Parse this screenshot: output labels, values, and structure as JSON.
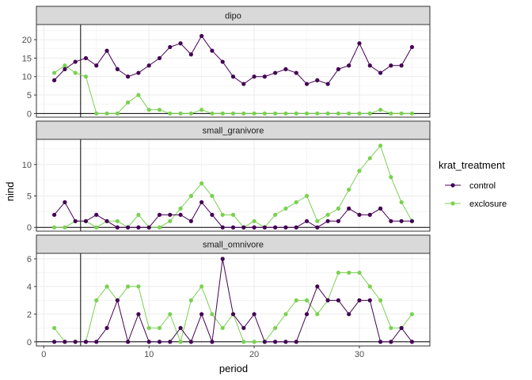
{
  "chart_data": {
    "type": "line",
    "xlabel": "period",
    "ylabel": "nind",
    "xlim": [
      -0.7,
      36.7
    ],
    "x_ticks": [
      0,
      10,
      20,
      30
    ],
    "vline_x": 3.5,
    "hline_y": 0,
    "grid": true,
    "legend": {
      "title": "krat_treatment",
      "position": "right",
      "entries": [
        {
          "name": "control",
          "color": "#440154"
        },
        {
          "name": "exclosure",
          "color": "#7AD151"
        }
      ]
    },
    "panels": [
      {
        "title": "dipo",
        "ylim": [
          -1,
          24.1
        ],
        "y_ticks": [
          0,
          5,
          10,
          15,
          20
        ],
        "series": [
          {
            "name": "control",
            "color": "#440154",
            "x": [
              1,
              2,
              3,
              4,
              5,
              6,
              7,
              8,
              9,
              10,
              11,
              12,
              13,
              14,
              15,
              16,
              17,
              18,
              19,
              20,
              21,
              22,
              23,
              24,
              25,
              26,
              27,
              28,
              29,
              30,
              31,
              32,
              33,
              34,
              35
            ],
            "y": [
              9,
              12,
              14,
              15,
              13,
              17,
              12,
              10,
              11,
              13,
              15,
              18,
              19,
              16,
              21,
              17,
              14,
              10,
              8,
              10,
              10,
              11,
              12,
              11,
              8,
              9,
              8,
              12,
              13,
              19,
              13,
              11,
              13,
              13,
              18
            ]
          },
          {
            "name": "exclosure",
            "color": "#7AD151",
            "x": [
              1,
              2,
              3,
              4,
              5,
              6,
              7,
              8,
              9,
              10,
              11,
              12,
              13,
              14,
              15,
              16,
              17,
              18,
              19,
              20,
              21,
              22,
              23,
              24,
              25,
              26,
              27,
              28,
              29,
              30,
              31,
              32,
              33,
              34,
              35
            ],
            "y": [
              11,
              13,
              11,
              10,
              0,
              0,
              0,
              3,
              5,
              1,
              1,
              0,
              0,
              0,
              1,
              0,
              0,
              0,
              0,
              0,
              0,
              0,
              0,
              0,
              0,
              0,
              0,
              0,
              0,
              0,
              0,
              1,
              0,
              0,
              0
            ]
          }
        ]
      },
      {
        "title": "small_granivore",
        "ylim": [
          -0.6,
          14
        ],
        "y_ticks": [
          0,
          5,
          10
        ],
        "series": [
          {
            "name": "control",
            "color": "#440154",
            "x": [
              1,
              2,
              3,
              4,
              5,
              6,
              7,
              8,
              9,
              10,
              11,
              12,
              13,
              14,
              15,
              16,
              17,
              18,
              19,
              20,
              21,
              22,
              23,
              24,
              25,
              26,
              27,
              28,
              29,
              30,
              31,
              32,
              33,
              34,
              35
            ],
            "y": [
              2,
              4,
              1,
              1,
              2,
              1,
              0,
              0,
              0,
              0,
              2,
              2,
              2,
              1,
              4,
              2,
              0,
              0,
              0,
              0,
              0,
              0,
              0,
              0,
              1,
              0,
              1,
              1,
              3,
              2,
              2,
              3,
              1,
              1,
              1
            ]
          },
          {
            "name": "exclosure",
            "color": "#7AD151",
            "x": [
              1,
              2,
              3,
              4,
              5,
              6,
              7,
              8,
              9,
              10,
              11,
              12,
              13,
              14,
              15,
              16,
              17,
              18,
              19,
              20,
              21,
              22,
              23,
              24,
              25,
              26,
              27,
              28,
              29,
              30,
              31,
              32,
              33,
              34,
              35
            ],
            "y": [
              0,
              0,
              1,
              1,
              0,
              1,
              1,
              0,
              2,
              0,
              0,
              1,
              3,
              5,
              7,
              5,
              2,
              2,
              0,
              1,
              0,
              2,
              3,
              4,
              5,
              1,
              2,
              3,
              6,
              9,
              11,
              13,
              8,
              4,
              1
            ]
          }
        ]
      },
      {
        "title": "small_omnivore",
        "ylim": [
          -0.3,
          6.4
        ],
        "y_ticks": [
          0,
          2,
          4,
          6
        ],
        "series": [
          {
            "name": "control",
            "color": "#440154",
            "x": [
              1,
              2,
              3,
              4,
              5,
              6,
              7,
              8,
              9,
              10,
              11,
              12,
              13,
              14,
              15,
              16,
              17,
              18,
              19,
              20,
              21,
              22,
              23,
              24,
              25,
              26,
              27,
              28,
              29,
              30,
              31,
              32,
              33,
              34,
              35
            ],
            "y": [
              0,
              0,
              0,
              0,
              0,
              1,
              3,
              0,
              2,
              0,
              0,
              0,
              1,
              0,
              2,
              0,
              6,
              2,
              1,
              2,
              0,
              0,
              0,
              0,
              2,
              4,
              3,
              3,
              2,
              3,
              3,
              0,
              0,
              1,
              0
            ]
          },
          {
            "name": "exclosure",
            "color": "#7AD151",
            "x": [
              1,
              2,
              3,
              4,
              5,
              6,
              7,
              8,
              9,
              10,
              11,
              12,
              13,
              14,
              15,
              16,
              17,
              18,
              19,
              20,
              21,
              22,
              23,
              24,
              25,
              26,
              27,
              28,
              29,
              30,
              31,
              32,
              33,
              34,
              35
            ],
            "y": [
              1,
              0,
              0,
              0,
              3,
              4,
              3,
              4,
              4,
              1,
              1,
              2,
              0,
              3,
              4,
              2,
              1,
              2,
              0,
              0,
              0,
              1,
              2,
              3,
              3,
              2,
              3,
              5,
              5,
              5,
              4,
              3,
              1,
              1,
              2
            ]
          }
        ]
      }
    ]
  }
}
